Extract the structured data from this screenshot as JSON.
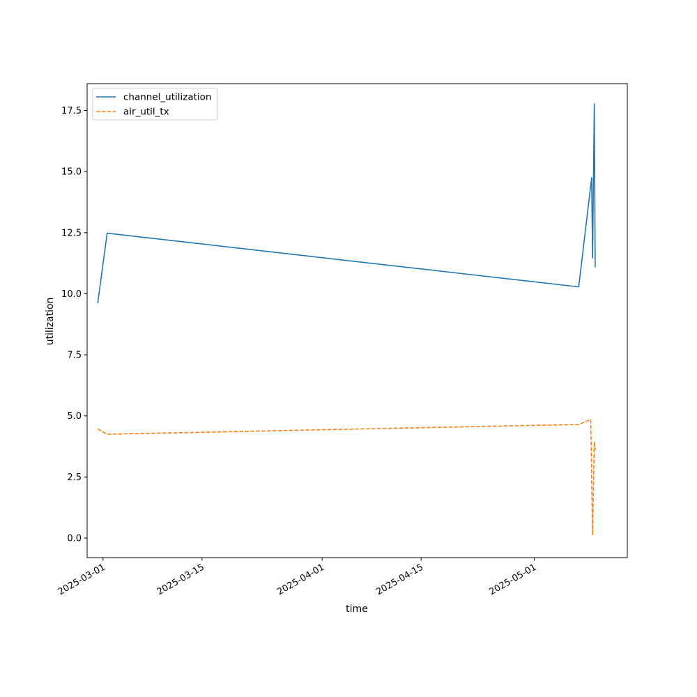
{
  "chart_data": {
    "type": "line",
    "title": "",
    "xlabel": "time",
    "ylabel": "utilization",
    "x_axis_type": "date",
    "x_ticks": [
      "2025-03-01",
      "2025-03-15",
      "2025-04-01",
      "2025-04-15",
      "2025-05-01"
    ],
    "y_ticks": [
      "0.0",
      "2.5",
      "5.0",
      "7.5",
      "10.0",
      "12.5",
      "15.0",
      "17.5"
    ],
    "xlim": [
      "2025-02-26T18:00",
      "2025-05-14T04:00"
    ],
    "ylim": [
      -0.8,
      18.6
    ],
    "grid": false,
    "legend_position": "top-left",
    "series": [
      {
        "name": "channel_utilization",
        "color": "#1f77b4",
        "line_style": "solid",
        "points": [
          {
            "x": "2025-02-28T06:00",
            "y": 9.62
          },
          {
            "x": "2025-03-01T14:00",
            "y": 12.48
          },
          {
            "x": "2025-05-07T07:00",
            "y": 10.28
          },
          {
            "x": "2025-05-09T03:00",
            "y": 14.75
          },
          {
            "x": "2025-05-09T06:00",
            "y": 11.47
          },
          {
            "x": "2025-05-09T12:00",
            "y": 17.77
          },
          {
            "x": "2025-05-09T15:00",
            "y": 11.08
          }
        ]
      },
      {
        "name": "air_util_tx",
        "color": "#ff7f0e",
        "line_style": "dashed",
        "points": [
          {
            "x": "2025-02-28T06:00",
            "y": 4.47
          },
          {
            "x": "2025-03-01T14:00",
            "y": 4.25
          },
          {
            "x": "2025-05-07T07:00",
            "y": 4.65
          },
          {
            "x": "2025-05-09T00:00",
            "y": 4.85
          },
          {
            "x": "2025-05-09T06:00",
            "y": 0.12
          },
          {
            "x": "2025-05-09T12:00",
            "y": 3.95
          },
          {
            "x": "2025-05-09T15:00",
            "y": 3.62
          }
        ]
      }
    ]
  }
}
